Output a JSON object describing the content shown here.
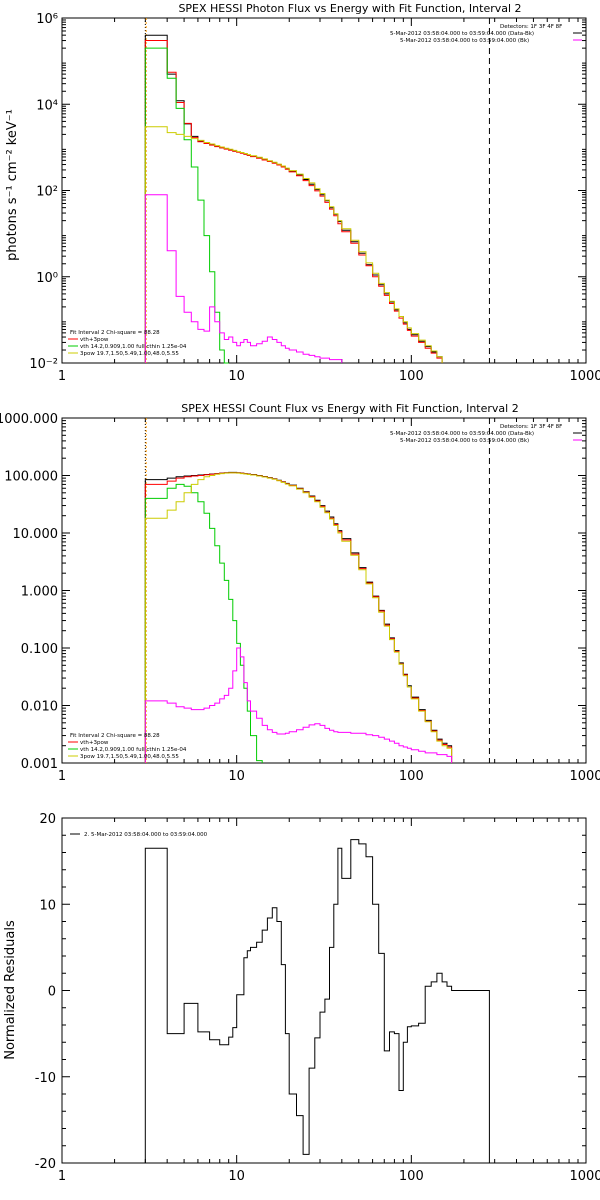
{
  "chart_data": [
    {
      "type": "line",
      "title": "SPEX HESSI Photon Flux vs Energy with Fit Function, Interval 2",
      "ylabel": "photons s⁻¹ cm⁻² keV⁻¹",
      "xscale": "log",
      "yscale": "log",
      "xlim": [
        1,
        1000
      ],
      "ylim": [
        0.01,
        1000000
      ],
      "xticklabels": [
        "1",
        "10",
        "100",
        "1000"
      ],
      "yticklabels": [
        "10⁻²",
        "10⁰",
        "10²",
        "10⁴",
        "10⁶"
      ],
      "vlines": [
        {
          "x": 3,
          "style": "dotted"
        },
        {
          "x": 280,
          "style": "dashed"
        }
      ],
      "legend_top": {
        "lines": [
          "Detectors: 1F 3F 4F 8F",
          "5-Mar-2012 03:58:04.000 to 03:59:04.000 (Data-Bk)",
          "5-Mar-2012 03:58:04.000 to 03:59:04.000 (Bk)"
        ],
        "colors": [
          "#000000",
          "#000000",
          "#ff00ff"
        ]
      },
      "legend_bottom": {
        "lines": [
          "Fit Interval  2    Chi-square = 88.28",
          "vth+3pow"
        ],
        "colors": [
          "#000000",
          "#ff0000"
        ]
      },
      "edges": [
        3,
        3.5,
        4,
        4.5,
        5,
        5.5,
        6,
        6.5,
        7,
        7.5,
        8,
        8.5,
        9,
        9.5,
        10,
        10.5,
        11,
        11.5,
        12,
        13,
        14,
        15,
        16,
        17,
        18,
        19,
        20,
        22,
        24,
        26,
        28,
        30,
        32,
        34,
        36,
        38,
        40,
        45,
        50,
        55,
        60,
        65,
        70,
        75,
        80,
        85,
        90,
        95,
        100,
        110,
        120,
        130,
        140,
        150,
        160,
        170,
        180,
        200,
        220,
        240,
        260,
        280
      ],
      "series": [
        {
          "name": "data",
          "color": "#000000",
          "values": [
            400000,
            400000,
            50000,
            12000,
            3500,
            1800,
            1400,
            1250,
            1150,
            1050,
            980,
            920,
            870,
            820,
            780,
            740,
            700,
            660,
            620,
            570,
            520,
            480,
            440,
            400,
            360,
            320,
            280,
            230,
            180,
            140,
            105,
            80,
            58,
            40,
            28,
            19,
            12,
            6.5,
            3.5,
            1.9,
            1.1,
            0.65,
            0.4,
            0.26,
            0.17,
            0.12,
            0.085,
            0.06,
            0.045,
            0.032,
            0.024,
            0.018,
            0.014
          ]
        },
        {
          "name": "vth+3pow",
          "color": "#ff0000",
          "values": [
            300000,
            300000,
            55000,
            11000,
            3600,
            1700,
            1350,
            1230,
            1130,
            1040,
            970,
            910,
            860,
            810,
            770,
            730,
            690,
            650,
            610,
            560,
            510,
            470,
            430,
            390,
            350,
            310,
            270,
            220,
            170,
            130,
            98,
            74,
            53,
            37,
            26,
            17,
            11,
            6,
            3.2,
            1.8,
            1.0,
            0.6,
            0.37,
            0.24,
            0.16,
            0.11,
            0.08,
            0.057,
            0.042,
            0.03,
            0.022,
            0.017,
            0.013
          ]
        },
        {
          "name": "vth 14.2,0.909,1.00 full cthin 1.25e-04",
          "color": "#00cc00",
          "values": [
            200000,
            200000,
            40000,
            8000,
            1500,
            350,
            60,
            9,
            1.3,
            0.15,
            0.02,
            0.003
          ]
        },
        {
          "name": "3pow 19.7,1.50,5.49,1.00,48.0,5.55",
          "color": "#cccc00",
          "values": [
            3000,
            3000,
            2200,
            2000,
            1800,
            1600,
            1450,
            1300,
            1200,
            1100,
            1020,
            950,
            900,
            850,
            800,
            760,
            720,
            680,
            640,
            590,
            540,
            490,
            450,
            410,
            370,
            330,
            290,
            240,
            190,
            150,
            110,
            85,
            60,
            42,
            29,
            20,
            13,
            7,
            3.8,
            2.1,
            1.2,
            0.7,
            0.43,
            0.27,
            0.18,
            0.12,
            0.09,
            0.065,
            0.048,
            0.034,
            0.025,
            0.019,
            0.014
          ]
        },
        {
          "name": "Bk",
          "color": "#ff00ff",
          "values": [
            80,
            80,
            4,
            0.35,
            0.15,
            0.09,
            0.06,
            0.055,
            0.2,
            0.09,
            0.05,
            0.035,
            0.04,
            0.03,
            0.025,
            0.03,
            0.035,
            0.03,
            0.025,
            0.028,
            0.032,
            0.04,
            0.035,
            0.03,
            0.025,
            0.022,
            0.02,
            0.018,
            0.016,
            0.015,
            0.014,
            0.013,
            0.013,
            0.012,
            0.012,
            0.012
          ]
        }
      ]
    },
    {
      "type": "line",
      "title": "SPEX HESSI Count Flux vs Energy with Fit Function, Interval 2",
      "ylabel": "",
      "xscale": "log",
      "yscale": "log",
      "xlim": [
        1,
        1000
      ],
      "ylim": [
        0.001,
        1000
      ],
      "xticklabels": [
        "1",
        "10",
        "100",
        "1000"
      ],
      "yticklabels": [
        "0.001",
        "0.010",
        "0.100",
        "1.000",
        "10.000",
        "100.000",
        "1000.000"
      ],
      "vlines": [
        {
          "x": 3,
          "style": "dotted"
        },
        {
          "x": 280,
          "style": "dashed"
        }
      ],
      "legend_top": {
        "lines": [
          "Detectors: 1F 3F 4F 8F",
          "5-Mar-2012 03:58:04.000 to 03:59:04.000 (Data-Bk)",
          "5-Mar-2012 03:58:04.000 to 03:59:04.000 (Bk)"
        ],
        "colors": [
          "#000000",
          "#000000",
          "#ff00ff"
        ]
      },
      "legend_bottom": {
        "lines": [
          "Fit Interval  2    Chi-square = 88.28",
          "vth+3pow",
          "vth 14.2,0.909,1.00  full cthin 1.25e-04",
          "3pow 19.7,1.50,5.49,1.00,48.0,5.55"
        ],
        "colors": [
          "#000000",
          "#ff0000",
          "#00cc00",
          "#cccc00"
        ]
      },
      "edges": [
        3,
        3.5,
        4,
        4.5,
        5,
        5.5,
        6,
        6.5,
        7,
        7.5,
        8,
        8.5,
        9,
        9.5,
        10,
        10.5,
        11,
        11.5,
        12,
        13,
        14,
        15,
        16,
        17,
        18,
        19,
        20,
        22,
        24,
        26,
        28,
        30,
        32,
        34,
        36,
        38,
        40,
        45,
        50,
        55,
        60,
        65,
        70,
        75,
        80,
        85,
        90,
        95,
        100,
        110,
        120,
        130,
        140,
        150,
        160,
        170,
        180,
        200,
        220,
        240,
        260,
        280
      ],
      "series": [
        {
          "name": "data",
          "color": "#000000",
          "values": [
            85,
            85,
            90,
            95,
            98,
            100,
            102,
            104,
            106,
            108,
            110,
            112,
            113,
            113,
            112,
            110,
            108,
            106,
            104,
            100,
            96,
            92,
            88,
            83,
            78,
            73,
            68,
            60,
            52,
            44,
            37,
            30,
            24,
            19,
            14.5,
            11,
            8,
            4.5,
            2.5,
            1.4,
            0.8,
            0.45,
            0.26,
            0.15,
            0.09,
            0.055,
            0.035,
            0.022,
            0.014,
            0.0085,
            0.0055,
            0.0037,
            0.0026,
            0.0022,
            0.002
          ]
        },
        {
          "name": "vth+3pow",
          "color": "#ff0000",
          "values": [
            70,
            70,
            80,
            90,
            95,
            98,
            100,
            103,
            105,
            107,
            109,
            111,
            112,
            112,
            111,
            109,
            107,
            105,
            103,
            99,
            95,
            91,
            87,
            82,
            77,
            72,
            67,
            59,
            51,
            43,
            36,
            29,
            23,
            18,
            14,
            10.5,
            7.6,
            4.3,
            2.4,
            1.35,
            0.78,
            0.44,
            0.25,
            0.145,
            0.087,
            0.053,
            0.034,
            0.021,
            0.0135,
            0.0082,
            0.0053,
            0.0036,
            0.0025,
            0.0021,
            0.0019
          ]
        },
        {
          "name": "vth",
          "color": "#00cc00",
          "values": [
            40,
            40,
            60,
            70,
            65,
            50,
            35,
            22,
            12,
            6,
            3,
            1.5,
            0.7,
            0.3,
            0.12,
            0.05,
            0.02,
            0.008,
            0.003,
            0.0011
          ]
        },
        {
          "name": "3pow",
          "color": "#cccc00",
          "values": [
            18,
            18,
            25,
            35,
            50,
            70,
            85,
            95,
            100,
            105,
            108,
            110,
            111,
            111,
            110,
            108,
            106,
            104,
            102,
            98,
            94,
            90,
            86,
            81,
            76,
            71,
            66,
            58,
            50,
            42,
            35,
            28,
            22.5,
            17.5,
            13.5,
            10,
            7.2,
            4.1,
            2.3,
            1.3,
            0.75,
            0.42,
            0.24,
            0.14,
            0.085,
            0.052,
            0.033,
            0.021,
            0.013,
            0.008,
            0.0052,
            0.0035,
            0.0024,
            0.002,
            0.0018
          ]
        },
        {
          "name": "Bk",
          "color": "#ff00ff",
          "values": [
            0.012,
            0.012,
            0.011,
            0.0095,
            0.009,
            0.0085,
            0.0085,
            0.009,
            0.01,
            0.011,
            0.013,
            0.015,
            0.02,
            0.04,
            0.1,
            0.07,
            0.025,
            0.012,
            0.008,
            0.006,
            0.0045,
            0.0038,
            0.0034,
            0.0032,
            0.0032,
            0.0033,
            0.0035,
            0.0038,
            0.0042,
            0.0046,
            0.0048,
            0.0045,
            0.004,
            0.0037,
            0.0035,
            0.0034,
            0.0034,
            0.0033,
            0.0033,
            0.0031,
            0.003,
            0.0028,
            0.0026,
            0.0024,
            0.0022,
            0.002,
            0.0019,
            0.0018,
            0.0017,
            0.0016,
            0.0015,
            0.0015,
            0.0014,
            0.0014,
            0.0013
          ]
        }
      ]
    },
    {
      "type": "line",
      "title": "",
      "ylabel": "Normalized Residuals",
      "xscale": "log",
      "yscale": "linear",
      "xlim": [
        1,
        1000
      ],
      "ylim": [
        -20,
        20
      ],
      "xticklabels": [
        "1",
        "10",
        "100",
        "1000"
      ],
      "yticks": [
        -20,
        -10,
        0,
        10,
        20
      ],
      "yticklabels": [
        "-20",
        "-10",
        "0",
        "10",
        "20"
      ],
      "legend_top": {
        "lines": [
          "2.  5-Mar-2012 03:58:04.000 to 03:59:04.000"
        ],
        "colors": [
          "#000000"
        ]
      },
      "edges": [
        3,
        4,
        5,
        6,
        7,
        8,
        9,
        9.5,
        10,
        11,
        11.5,
        12,
        13,
        14,
        15,
        16,
        17,
        18,
        19,
        20,
        22,
        24,
        26,
        28,
        30,
        32,
        34,
        36,
        38,
        40,
        45,
        50,
        55,
        60,
        65,
        70,
        75,
        80,
        85,
        90,
        95,
        100,
        110,
        120,
        130,
        140,
        150,
        160,
        170,
        180,
        200,
        220,
        240,
        260,
        280
      ],
      "series": [
        {
          "name": "residuals",
          "color": "#000000",
          "values": [
            16.5,
            -5,
            -1.5,
            -4.8,
            -5.7,
            -6.3,
            -5.4,
            -4.3,
            -0.5,
            3.8,
            4.6,
            5,
            5.6,
            7,
            8.4,
            9.6,
            8,
            3,
            -5,
            -12,
            -14.5,
            -19,
            -9,
            -5.5,
            -2.5,
            -1,
            5,
            10,
            16.5,
            13,
            17.5,
            17,
            15.5,
            10,
            4.3,
            -7,
            -4.8,
            -5,
            -11.6,
            -6,
            -4.2,
            -4.1,
            -3.8,
            0.5,
            1,
            2,
            1,
            0.5,
            0,
            0,
            0,
            0,
            0,
            0
          ]
        }
      ]
    }
  ]
}
